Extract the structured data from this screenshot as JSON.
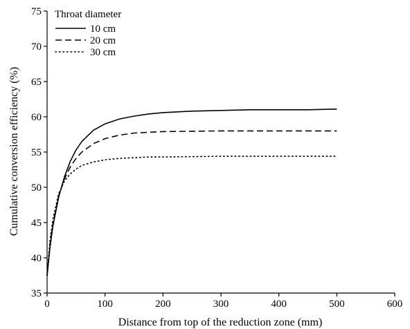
{
  "chart_data": {
    "type": "line",
    "title": "",
    "xlabel": "Distance from top of the reduction zone (mm)",
    "ylabel": "Cumulative conversion efficiency (%)",
    "xlim": [
      0,
      600
    ],
    "ylim": [
      35,
      75
    ],
    "x_ticks": [
      "0",
      "100",
      "200",
      "300",
      "400",
      "500",
      "600"
    ],
    "y_ticks": [
      "35",
      "40",
      "45",
      "50",
      "55",
      "60",
      "65",
      "70",
      "75"
    ],
    "grid": false,
    "legend": {
      "title": "Throat diameter",
      "placement": "top-left"
    },
    "series": [
      {
        "name": "10 cm",
        "style": "solid",
        "x": [
          0,
          5,
          10,
          20,
          30,
          40,
          50,
          60,
          80,
          100,
          125,
          150,
          175,
          200,
          250,
          300,
          350,
          400,
          450,
          500
        ],
        "values": [
          37.5,
          41.5,
          44.5,
          48.6,
          51.5,
          53.7,
          55.3,
          56.5,
          58.1,
          59.0,
          59.7,
          60.1,
          60.4,
          60.6,
          60.8,
          60.9,
          61.0,
          61.0,
          61.0,
          61.1
        ]
      },
      {
        "name": "20 cm",
        "style": "dashed",
        "x": [
          0,
          5,
          10,
          20,
          30,
          40,
          50,
          60,
          80,
          100,
          125,
          150,
          175,
          200,
          250,
          300,
          350,
          400,
          450,
          500
        ],
        "values": [
          37.5,
          41.8,
          44.8,
          48.8,
          51.2,
          52.9,
          54.1,
          55.0,
          56.2,
          56.9,
          57.4,
          57.7,
          57.8,
          57.9,
          57.95,
          58.0,
          58.0,
          58.0,
          58.0,
          58.0
        ]
      },
      {
        "name": "30 cm",
        "style": "dotted",
        "x": [
          0,
          5,
          10,
          20,
          30,
          40,
          50,
          60,
          80,
          100,
          125,
          150,
          175,
          200,
          250,
          300,
          350,
          400,
          450,
          500
        ],
        "values": [
          37.5,
          42.5,
          45.5,
          49.1,
          50.9,
          51.9,
          52.6,
          53.1,
          53.6,
          53.9,
          54.1,
          54.2,
          54.3,
          54.3,
          54.35,
          54.4,
          54.4,
          54.4,
          54.4,
          54.4
        ]
      }
    ]
  },
  "colors": {
    "line": "#000000",
    "background": "#ffffff"
  }
}
